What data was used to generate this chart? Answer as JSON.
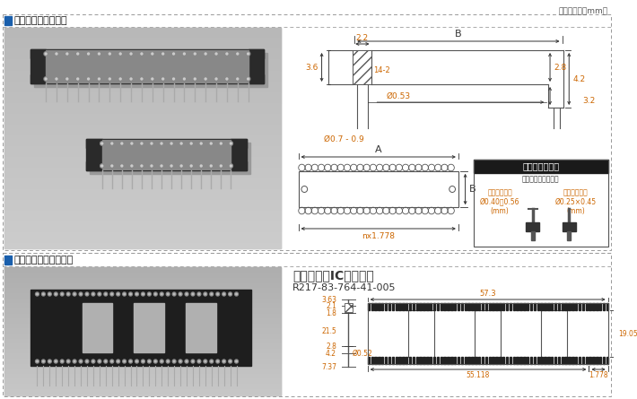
{
  "page_bg": "#ffffff",
  "photo_bg": "#c8c8c8",
  "title_unit": "（寸法単位：mm）",
  "section1_title": "オープンフレーム型",
  "section2_title": "クローズドフレーム型",
  "subsection2_title": "シュリンクICソケット",
  "subsection2_code": "R217-83-764-41-005",
  "pin_box_title": "適合ピンサイズ",
  "pin_box_sub": "丸ピンまたは角ピン",
  "pin_round_label": "丸ピンの場合\nØ0.40～0.56\n(mm)",
  "pin_square_label": "角ピンの場合\nØ0.25×0.45\n(mm)",
  "section_title_bg": "#1a5fac",
  "section_title_color": "#ffffff",
  "dim_color": "#cc6600",
  "line_color": "#333333",
  "draw_color": "#555555",
  "pin_box_bg": "#1a1a1a"
}
